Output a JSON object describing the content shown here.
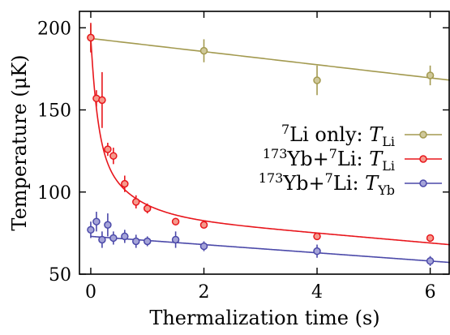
{
  "chart_data": {
    "type": "scatter",
    "title": "",
    "xlabel": "Thermalization time (s)",
    "ylabel": "Temperature (μK)",
    "xlim": [
      -0.2,
      6.35
    ],
    "ylim": [
      50,
      210
    ],
    "xticks": [
      0,
      2,
      4,
      6
    ],
    "yticks": [
      50,
      100,
      150,
      200
    ],
    "grid": false,
    "legend_position": "right-middle",
    "series": [
      {
        "name": "⁷Li only: T_Li",
        "legend_parts": {
          "sup1": "7",
          "main": "Li only: ",
          "var": "T",
          "sub": "Li"
        },
        "color": "#a39a50",
        "marker_fill": "#cfc89a",
        "x": [
          0,
          2,
          4,
          6
        ],
        "y": [
          194,
          186,
          168,
          171
        ],
        "yerr": [
          8,
          7,
          9,
          6
        ],
        "fit": {
          "form": "linear",
          "a": 193.5,
          "b": -4.0
        }
      },
      {
        "name": "¹⁷³Yb+⁷Li: T_Li",
        "legend_parts": {
          "sup1": "173",
          "main": "Yb+",
          "sup2": "7",
          "main2": "Li: ",
          "var": "T",
          "sub": "Li"
        },
        "color": "#e8161c",
        "marker_fill": "#f59a8d",
        "x": [
          0,
          0.1,
          0.2,
          0.3,
          0.4,
          0.6,
          0.8,
          1.0,
          1.5,
          2,
          4,
          6
        ],
        "y": [
          194,
          157,
          156,
          126,
          122,
          105,
          94,
          90,
          82,
          80,
          73,
          72
        ],
        "yerr": [
          9,
          5,
          17,
          4,
          5,
          5,
          4,
          3,
          2,
          2,
          2,
          2
        ],
        "fit": {
          "form": "biexp",
          "A1": 64,
          "t1": 0.12,
          "A2": 43,
          "t2": 0.6,
          "c0": 87,
          "slope": -3.0
        }
      },
      {
        "name": "¹⁷³Yb+⁷Li: T_Yb",
        "legend_parts": {
          "sup1": "173",
          "main": "Yb+",
          "sup2": "7",
          "main2": "Li: ",
          "var": "T",
          "sub": "Yb"
        },
        "color": "#4b49a9",
        "marker_fill": "#a5a4d8",
        "x": [
          0,
          0.1,
          0.2,
          0.3,
          0.4,
          0.6,
          0.8,
          1.0,
          1.5,
          2,
          4,
          6
        ],
        "y": [
          77,
          82,
          71,
          80,
          72,
          73,
          70,
          70,
          71,
          67,
          64,
          58
        ],
        "yerr": [
          5,
          6,
          5,
          7,
          4,
          4,
          4,
          3,
          5,
          3,
          4,
          3
        ],
        "fit": {
          "form": "linear",
          "a": 73.0,
          "b": -2.5
        }
      }
    ]
  }
}
